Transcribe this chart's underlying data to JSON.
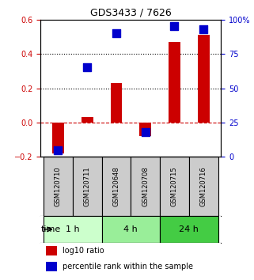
{
  "title": "GDS3433 / 7626",
  "samples": [
    "GSM120710",
    "GSM120711",
    "GSM120648",
    "GSM120708",
    "GSM120715",
    "GSM120716"
  ],
  "log10_ratio": [
    -0.18,
    0.03,
    0.23,
    -0.08,
    0.47,
    0.51
  ],
  "percentile_rank": [
    5,
    65,
    90,
    18,
    95,
    93
  ],
  "left_ylim": [
    -0.2,
    0.6
  ],
  "right_ylim": [
    0,
    100
  ],
  "left_yticks": [
    -0.2,
    0.0,
    0.2,
    0.4,
    0.6
  ],
  "right_yticks": [
    0,
    25,
    50,
    75,
    100
  ],
  "right_yticklabels": [
    "0",
    "25",
    "50",
    "75",
    "100%"
  ],
  "hlines": [
    0.2,
    0.4
  ],
  "hline_zero": 0.0,
  "bar_color": "#cc0000",
  "dot_color": "#0000cc",
  "bar_width": 0.4,
  "dot_size": 60,
  "time_groups": [
    {
      "label": "1 h",
      "samples": [
        0,
        1
      ],
      "color": "#ccffcc"
    },
    {
      "label": "4 h",
      "samples": [
        2,
        3
      ],
      "color": "#99ee99"
    },
    {
      "label": "24 h",
      "samples": [
        4,
        5
      ],
      "color": "#44cc44"
    }
  ],
  "legend_bar_label": "log10 ratio",
  "legend_dot_label": "percentile rank within the sample",
  "time_label": "time",
  "background_color": "#ffffff",
  "sample_box_color": "#cccccc",
  "sample_box_edge": "#000000"
}
